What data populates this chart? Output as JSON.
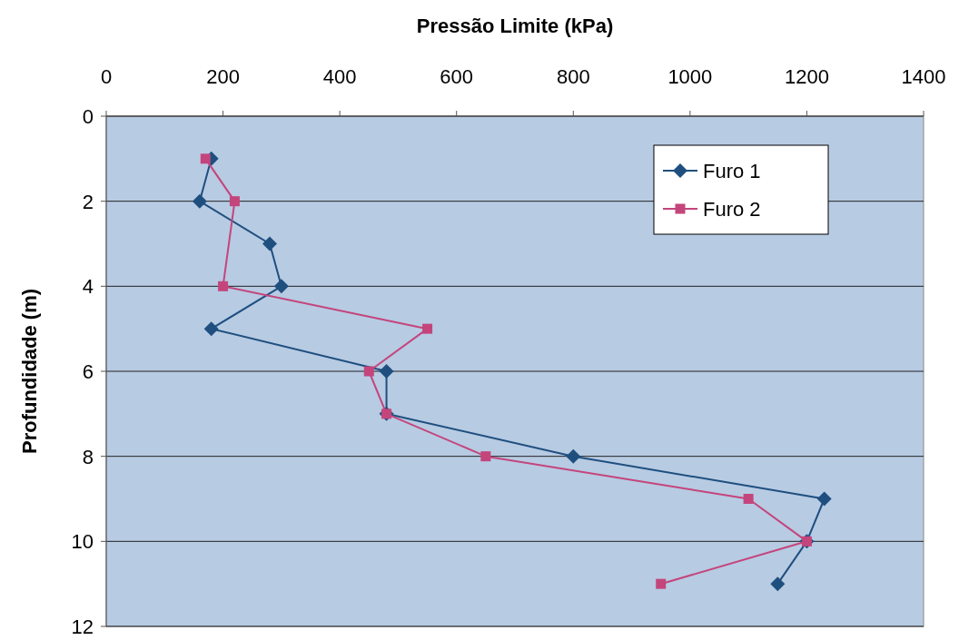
{
  "chart_data": {
    "type": "line",
    "title": "Pressão Limite (kPa)",
    "ylabel": "Profundidade (m)",
    "xlim": [
      0,
      1400
    ],
    "xticks": [
      0,
      200,
      400,
      600,
      800,
      1000,
      1200,
      1400
    ],
    "ylim": [
      12,
      0
    ],
    "yticks": [
      0,
      2,
      4,
      6,
      8,
      10,
      12
    ],
    "grid": "y",
    "legend": "top right",
    "line_style": "solid",
    "series": [
      {
        "name": "Furo 1",
        "color": "#1f4f7f",
        "marker": "diamond",
        "x": [
          180,
          160,
          280,
          300,
          180,
          480,
          480,
          800,
          1230,
          1200,
          1150
        ],
        "values": [
          1,
          2,
          3,
          4,
          5,
          6,
          7,
          8,
          9,
          10,
          11
        ]
      },
      {
        "name": "Furo 2",
        "color": "#c4457c",
        "marker": "square",
        "x": [
          170,
          220,
          200,
          550,
          450,
          480,
          650,
          1100,
          1200,
          950
        ],
        "values": [
          1,
          2,
          4,
          5,
          6,
          7,
          8,
          9,
          10,
          11
        ]
      }
    ]
  }
}
